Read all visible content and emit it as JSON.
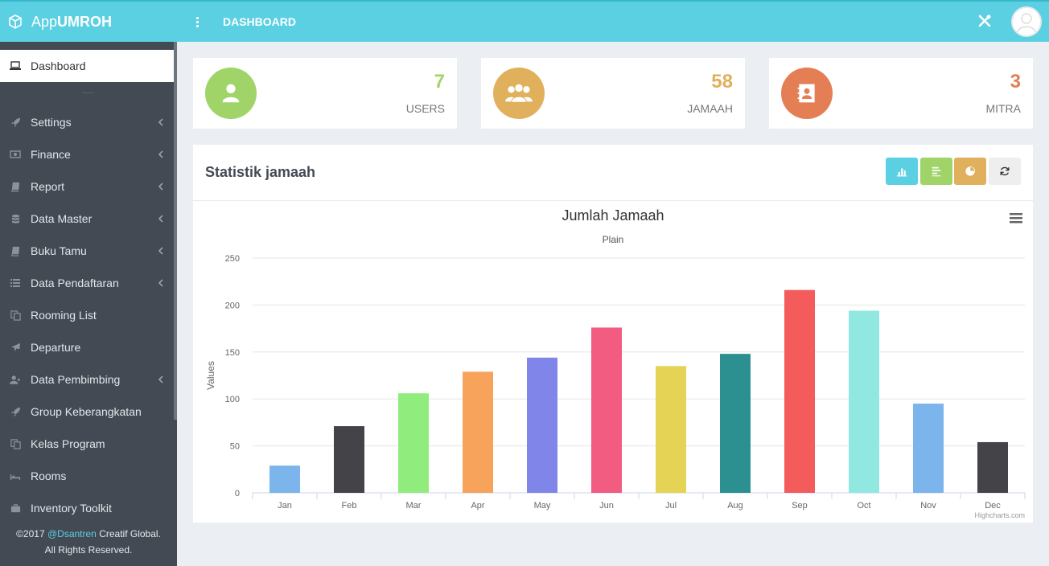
{
  "app": {
    "brand_prefix": "App",
    "brand_bold": "UMROH",
    "page_title": "DASHBOARD"
  },
  "sidebar": {
    "active": {
      "label": "Dashboard"
    },
    "items": [
      {
        "label": "Settings",
        "icon": "rocket-icon",
        "has_submenu": true
      },
      {
        "label": "Finance",
        "icon": "money-icon",
        "has_submenu": true
      },
      {
        "label": "Report",
        "icon": "book-icon",
        "has_submenu": true
      },
      {
        "label": "Data Master",
        "icon": "database-icon",
        "has_submenu": true
      },
      {
        "label": "Buku Tamu",
        "icon": "book-icon",
        "has_submenu": true
      },
      {
        "label": "Data Pendaftaran",
        "icon": "list-icon",
        "has_submenu": true
      },
      {
        "label": "Rooming List",
        "icon": "copy-icon",
        "has_submenu": false
      },
      {
        "label": "Departure",
        "icon": "plane-icon",
        "has_submenu": false
      },
      {
        "label": "Data Pembimbing",
        "icon": "user-plus-icon",
        "has_submenu": true
      },
      {
        "label": "Group Keberangkatan",
        "icon": "rocket-icon",
        "has_submenu": false
      },
      {
        "label": "Kelas Program",
        "icon": "copy-icon",
        "has_submenu": false
      },
      {
        "label": "Rooms",
        "icon": "bed-icon",
        "has_submenu": false
      },
      {
        "label": "Inventory Toolkit",
        "icon": "briefcase-icon",
        "has_submenu": false
      }
    ],
    "footer": {
      "year": "©2017",
      "author": "@Dsantren",
      "company": "Creatif Global.",
      "rights": "All Rights Reserved."
    }
  },
  "stats": [
    {
      "value": "7",
      "label": "USERS",
      "color": "#a0d468"
    },
    {
      "value": "58",
      "label": "JAMAAH",
      "color": "#e1b05c"
    },
    {
      "value": "3",
      "label": "MITRA",
      "color": "#e47f55"
    }
  ],
  "panel": {
    "title": "Statistik jamaah",
    "buttons": [
      {
        "name": "column-chart-button",
        "color": "#5bd0e2"
      },
      {
        "name": "bar-chart-button",
        "color": "#a0d468"
      },
      {
        "name": "pie-chart-button",
        "color": "#e1b05c"
      },
      {
        "name": "refresh-button",
        "color": "#eeeeee"
      }
    ]
  },
  "chart_data": {
    "type": "bar",
    "title": "Jumlah Jamaah",
    "subtitle": "Plain",
    "xlabel": "",
    "ylabel": "Values",
    "credits": "Highcharts.com",
    "categories": [
      "Jan",
      "Feb",
      "Mar",
      "Apr",
      "May",
      "Jun",
      "Jul",
      "Aug",
      "Sep",
      "Oct",
      "Nov",
      "Dec"
    ],
    "values": [
      29,
      71,
      106,
      129,
      144,
      176,
      135,
      148,
      216,
      194,
      95,
      54
    ],
    "colors": [
      "#7cb5ec",
      "#434348",
      "#90ed7d",
      "#f7a35c",
      "#8085e9",
      "#f15c80",
      "#e4d354",
      "#2b908f",
      "#f45b5b",
      "#91e8e1",
      "#7cb5ec",
      "#434348"
    ],
    "yticks": [
      0,
      50,
      100,
      150,
      200,
      250
    ],
    "ylim": [
      0,
      250
    ],
    "grid": true,
    "legend": "none"
  }
}
